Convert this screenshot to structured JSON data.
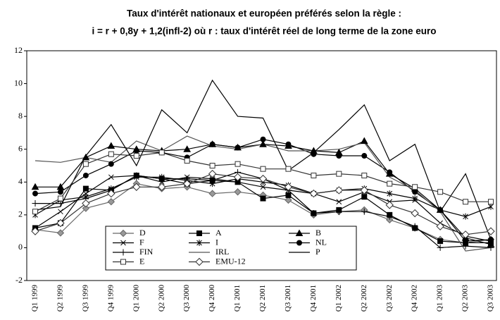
{
  "chart_data": {
    "type": "line",
    "title": "Taux d'intérêt nationaux et européen préférés selon la règle :",
    "subtitle": "i = r + 0,8y + 1,2(infl-2) où r : taux d'intérêt réel de long terme de la zone euro",
    "categories": [
      "Q1 1999",
      "Q2 1999",
      "Q3 1999",
      "Q4 1999",
      "Q1 2000",
      "Q2 2000",
      "Q3 2000",
      "Q4 2000",
      "Q1 2001",
      "Q2 2001",
      "Q3 2001",
      "Q4 2001",
      "Q1 2002",
      "Q2 2002",
      "Q3 2002",
      "Q4 2002",
      "Q1 2003",
      "Q2 2003",
      "Q3 2003"
    ],
    "ylim": [
      -2,
      12
    ],
    "yticks": [
      -2,
      0,
      2,
      4,
      6,
      8,
      10,
      12
    ],
    "grid": false,
    "series": [
      {
        "name": "D",
        "color": "#666666",
        "marker": "diamond",
        "values": [
          1.1,
          0.9,
          2.4,
          2.8,
          3.9,
          3.6,
          3.7,
          3.3,
          3.4,
          3.2,
          2.9,
          2.0,
          2.2,
          2.3,
          1.7,
          1.2,
          0.5,
          0.3,
          0.5
        ]
      },
      {
        "name": "A",
        "color": "#000000",
        "marker": "square",
        "values": [
          1.2,
          1.5,
          3.6,
          3.5,
          4.4,
          4.2,
          3.9,
          4.1,
          4.0,
          3.0,
          3.2,
          2.1,
          2.3,
          3.1,
          2.0,
          1.2,
          0.4,
          0.3,
          0.3
        ]
      },
      {
        "name": "B",
        "color": "#000000",
        "marker": "triangle",
        "values": [
          3.7,
          3.7,
          5.5,
          6.2,
          6.0,
          5.9,
          6.0,
          6.3,
          6.1,
          6.3,
          6.2,
          5.9,
          5.8,
          6.5,
          4.5,
          3.6,
          2.3,
          0.6,
          0.2
        ]
      },
      {
        "name": "F",
        "color": "#000000",
        "marker": "x",
        "values": [
          1.2,
          2.2,
          3.3,
          4.3,
          4.4,
          4.0,
          4.3,
          4.2,
          4.0,
          3.7,
          3.5,
          3.3,
          2.8,
          3.4,
          2.8,
          2.9,
          1.5,
          0.7,
          0.4
        ]
      },
      {
        "name": "I",
        "color": "#000000",
        "marker": "asterisk",
        "values": [
          2.0,
          2.9,
          3.1,
          3.6,
          4.3,
          4.3,
          4.1,
          3.9,
          4.2,
          4.0,
          3.8,
          3.3,
          3.5,
          3.6,
          3.3,
          3.0,
          2.3,
          1.9,
          2.5
        ]
      },
      {
        "name": "NL",
        "color": "#000000",
        "marker": "circle",
        "values": [
          3.3,
          3.4,
          4.4,
          5.1,
          5.9,
          5.8,
          5.5,
          6.3,
          6.1,
          6.6,
          6.3,
          5.7,
          5.6,
          5.6,
          4.6,
          3.4,
          2.3,
          0.4,
          0.5
        ]
      },
      {
        "name": "FIN",
        "color": "#000000",
        "marker": "plus",
        "values": [
          2.7,
          2.7,
          3.0,
          3.5,
          4.4,
          4.2,
          4.2,
          4.1,
          4.6,
          4.2,
          3.5,
          2.1,
          2.2,
          2.2,
          1.9,
          1.3,
          0.0,
          0.1,
          0.0
        ]
      },
      {
        "name": "IRL",
        "color": "#555555",
        "marker": "none",
        "values": [
          5.3,
          5.2,
          5.5,
          5.2,
          6.5,
          5.9,
          6.8,
          6.2,
          6.0,
          6.3,
          5.9,
          5.9,
          6.0,
          6.4,
          4.3,
          3.5,
          2.2,
          -0.2,
          0.0
        ]
      },
      {
        "name": "P",
        "color": "#000000",
        "marker": "none",
        "values": [
          2.3,
          2.5,
          5.6,
          7.5,
          5.0,
          8.4,
          7.0,
          10.2,
          8.0,
          7.9,
          4.7,
          5.8,
          7.2,
          8.7,
          5.3,
          6.3,
          2.2,
          4.5,
          0.5
        ]
      },
      {
        "name": "E",
        "color": "#333333",
        "marker": "square-open",
        "values": [
          2.2,
          3.0,
          5.1,
          5.7,
          5.6,
          5.8,
          5.3,
          5.0,
          5.1,
          4.8,
          4.8,
          4.4,
          4.5,
          4.4,
          3.9,
          3.7,
          3.4,
          2.8,
          2.8
        ]
      },
      {
        "name": "EMU-12",
        "color": "#333333",
        "marker": "diamond-open",
        "values": [
          1.0,
          1.5,
          2.7,
          3.3,
          3.7,
          3.7,
          3.9,
          4.5,
          4.3,
          4.2,
          3.7,
          3.3,
          3.5,
          3.5,
          2.6,
          2.1,
          1.3,
          0.8,
          1.0
        ]
      }
    ]
  }
}
